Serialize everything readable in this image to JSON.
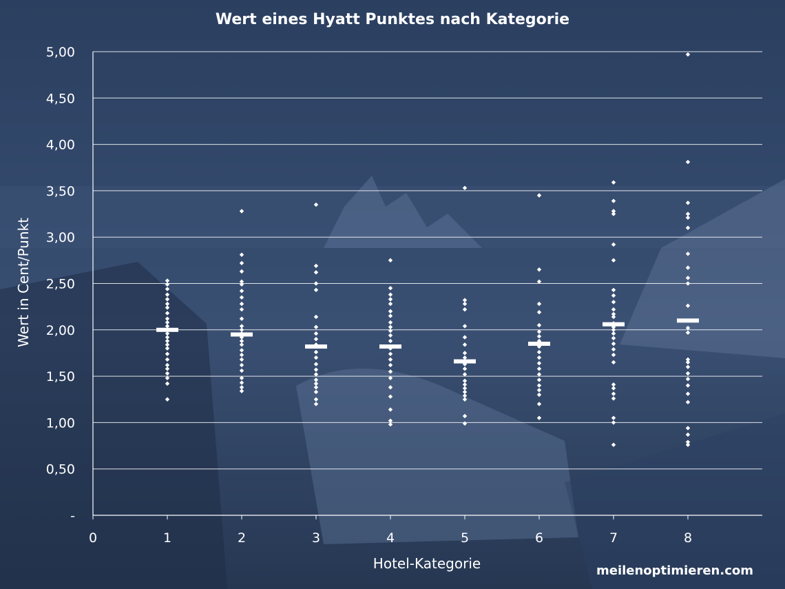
{
  "colors": {
    "background": "#2f4466",
    "marks": "#ffffff",
    "grid": "#ffffff"
  },
  "watermark": "meilenoptimieren.com",
  "chart_data": {
    "type": "scatter",
    "title": "Wert eines Hyatt Punktes nach Kategorie",
    "xlabel": "Hotel-Kategorie",
    "ylabel": "Wert in Cent/Punkt",
    "xlim": [
      0,
      9
    ],
    "ylim": [
      0,
      5
    ],
    "x_ticks": [
      "0",
      "1",
      "2",
      "3",
      "4",
      "5",
      "6",
      "7",
      "8"
    ],
    "y_ticks": [
      "-",
      "0,50",
      "1,00",
      "1,50",
      "2,00",
      "2,50",
      "3,00",
      "3,50",
      "4,00",
      "4,50",
      "5,00"
    ],
    "grid": "horizontal",
    "series": [
      {
        "type": "scatter",
        "points": [
          {
            "x": 1,
            "y": [
              1.25,
              1.42,
              1.48,
              1.53,
              1.58,
              1.62,
              1.68,
              1.74,
              1.8,
              1.84,
              1.88,
              1.92,
              1.96,
              2.0,
              2.04,
              2.08,
              2.12,
              2.18,
              2.24,
              2.28,
              2.33,
              2.38,
              2.44,
              2.49,
              2.53
            ]
          },
          {
            "x": 2,
            "y": [
              1.34,
              1.38,
              1.43,
              1.48,
              1.56,
              1.62,
              1.68,
              1.73,
              1.78,
              1.84,
              1.88,
              1.92,
              1.96,
              2.0,
              2.04,
              2.12,
              2.22,
              2.28,
              2.35,
              2.42,
              2.49,
              2.52,
              2.63,
              2.72,
              2.81,
              3.28
            ]
          },
          {
            "x": 3,
            "y": [
              1.2,
              1.25,
              1.33,
              1.38,
              1.42,
              1.46,
              1.52,
              1.57,
              1.63,
              1.7,
              1.76,
              1.84,
              1.9,
              1.96,
              2.03,
              2.14,
              2.43,
              2.5,
              2.62,
              2.69,
              3.35
            ]
          },
          {
            "x": 4,
            "y": [
              0.98,
              1.02,
              1.14,
              1.28,
              1.38,
              1.48,
              1.55,
              1.62,
              1.68,
              1.74,
              1.8,
              1.88,
              1.94,
              1.99,
              2.03,
              2.08,
              2.15,
              2.2,
              2.28,
              2.33,
              2.38,
              2.45,
              2.75
            ]
          },
          {
            "x": 5,
            "y": [
              0.99,
              1.07,
              1.25,
              1.29,
              1.33,
              1.37,
              1.41,
              1.45,
              1.52,
              1.58,
              1.63,
              1.7,
              1.75,
              1.84,
              1.92,
              2.04,
              2.22,
              2.28,
              2.32,
              3.53
            ]
          },
          {
            "x": 6,
            "y": [
              1.05,
              1.2,
              1.3,
              1.35,
              1.4,
              1.46,
              1.52,
              1.58,
              1.64,
              1.7,
              1.76,
              1.82,
              1.88,
              1.93,
              1.98,
              2.05,
              2.19,
              2.28,
              2.52,
              2.65,
              3.45
            ]
          },
          {
            "x": 7,
            "y": [
              0.76,
              1.0,
              1.05,
              1.26,
              1.31,
              1.37,
              1.41,
              1.65,
              1.73,
              1.79,
              1.85,
              1.91,
              1.96,
              2.0,
              2.03,
              2.07,
              2.14,
              2.17,
              2.22,
              2.3,
              2.37,
              2.43,
              2.75,
              2.92,
              3.25,
              3.28,
              3.39,
              3.59
            ]
          },
          {
            "x": 8,
            "y": [
              0.76,
              0.79,
              0.87,
              0.94,
              1.22,
              1.31,
              1.4,
              1.47,
              1.53,
              1.6,
              1.65,
              1.68,
              1.97,
              2.02,
              2.26,
              2.5,
              2.56,
              2.67,
              2.82,
              3.1,
              3.21,
              3.25,
              3.37,
              3.81,
              4.97
            ]
          }
        ]
      },
      {
        "type": "mean-marker",
        "points": [
          {
            "x": 1,
            "y": 2.0
          },
          {
            "x": 2,
            "y": 1.95
          },
          {
            "x": 3,
            "y": 1.82
          },
          {
            "x": 4,
            "y": 1.82
          },
          {
            "x": 5,
            "y": 1.66
          },
          {
            "x": 6,
            "y": 1.85
          },
          {
            "x": 7,
            "y": 2.06
          },
          {
            "x": 8,
            "y": 2.1
          }
        ]
      }
    ]
  }
}
